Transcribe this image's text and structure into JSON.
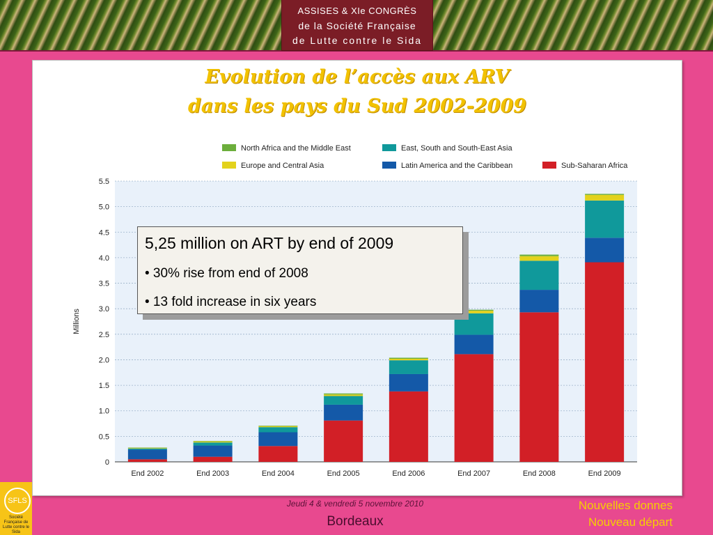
{
  "header": {
    "line1": "ASSISES & XIe CONGRÈS",
    "line2": "de la Société Française",
    "line3": "de Lutte contre le Sida"
  },
  "slide": {
    "title_line1": "Evolution de l’accès aux ARV",
    "title_line2": "dans les pays du Sud 2002-2009"
  },
  "callout": {
    "headline": "5,25 million on ART by end of 2009",
    "bullet1": "• 30% rise from end of 2008",
    "bullet2": "• 13 fold increase in six years"
  },
  "footer": {
    "date": "Jeudi 4 & vendredi 5 novembre 2010",
    "city": "Bordeaux",
    "right_line1": "Nouvelles donnes",
    "right_line2": "Nouveau départ",
    "logo_text": "Société Française de Lutte contre le Sida"
  },
  "chart_data": {
    "type": "bar",
    "stacked": true,
    "categories": [
      "End 2002",
      "End 2003",
      "End 2004",
      "End 2005",
      "End 2006",
      "End 2007",
      "End 2008",
      "End 2009"
    ],
    "ylabel": "Millions",
    "ylim": [
      0,
      5.5
    ],
    "yticks": [
      0,
      0.5,
      1.0,
      1.5,
      2.0,
      2.5,
      3.0,
      3.5,
      4.0,
      4.5,
      5.0,
      5.5
    ],
    "ytick_labels": [
      "0",
      "0.5",
      "1.0",
      "1.5",
      "2.0",
      "2.5",
      "3.0",
      "3.5",
      "4.0",
      "4.5",
      "5.0",
      "5.5"
    ],
    "grid": true,
    "legend_position": "top",
    "series": [
      {
        "name": "Sub-Saharan Africa",
        "color": "#d21f26",
        "values": [
          0.05,
          0.1,
          0.31,
          0.81,
          1.38,
          2.11,
          2.93,
          3.91
        ]
      },
      {
        "name": "Latin America and the Caribbean",
        "color": "#1459a8",
        "values": [
          0.19,
          0.22,
          0.27,
          0.31,
          0.34,
          0.38,
          0.44,
          0.48
        ]
      },
      {
        "name": "East, South and South-East Asia",
        "color": "#10999b",
        "values": [
          0.02,
          0.06,
          0.1,
          0.17,
          0.27,
          0.42,
          0.57,
          0.73
        ]
      },
      {
        "name": "Europe and Central Asia",
        "color": "#e3d21c",
        "values": [
          0.01,
          0.02,
          0.02,
          0.03,
          0.03,
          0.05,
          0.09,
          0.11
        ]
      },
      {
        "name": "North Africa and the Middle East",
        "color": "#6cae3c",
        "values": [
          0.01,
          0.01,
          0.01,
          0.02,
          0.02,
          0.02,
          0.03,
          0.02
        ]
      }
    ],
    "legend_order": [
      "North Africa and the Middle East",
      "East, South and South-East Asia",
      "Europe and Central Asia",
      "Latin America and the Caribbean",
      "Sub-Saharan Africa"
    ]
  }
}
